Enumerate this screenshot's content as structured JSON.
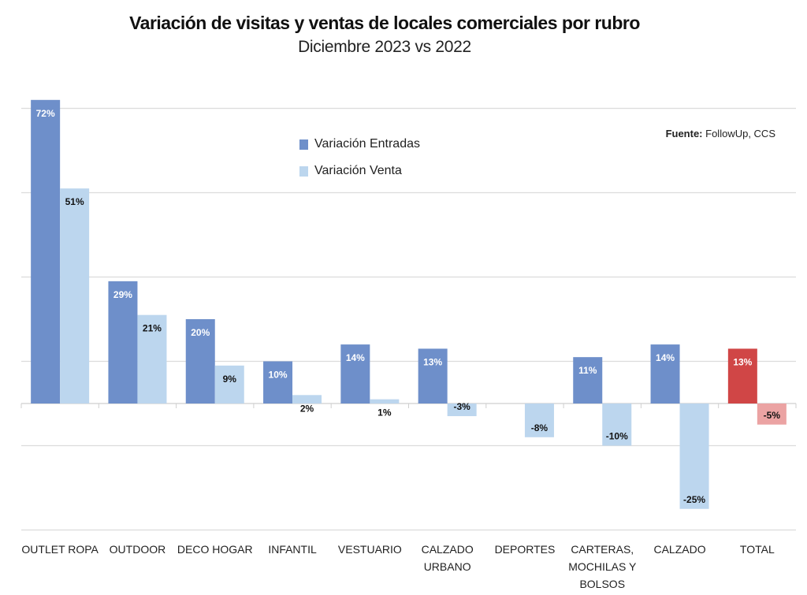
{
  "chart_data": {
    "type": "bar",
    "title": "Variación de visitas y ventas de locales comerciales por rubro",
    "subtitle": "Diciembre 2023 vs 2022",
    "source_label": "Fuente:",
    "source_value": "FollowUp, CCS",
    "categories": [
      [
        "OUTLET ROPA"
      ],
      [
        "OUTDOOR"
      ],
      [
        "DECO HOGAR"
      ],
      [
        "INFANTIL"
      ],
      [
        "VESTUARIO"
      ],
      [
        "CALZADO",
        "URBANO"
      ],
      [
        "DEPORTES"
      ],
      [
        "CARTERAS,",
        "MOCHILAS Y",
        "BOLSOS"
      ],
      [
        "CALZADO"
      ],
      [
        "TOTAL"
      ]
    ],
    "series": [
      {
        "name": "Variación Entradas",
        "color": "#6e8fca",
        "total_color": "#d04646",
        "label_color": "#ffffff",
        "values": [
          72,
          29,
          20,
          10,
          14,
          13,
          null,
          11,
          14,
          13
        ],
        "labels": [
          "72%",
          "29%",
          "20%",
          "10%",
          "14%",
          "13%",
          null,
          "11%",
          "14%",
          "13%"
        ]
      },
      {
        "name": "Variación Venta",
        "color": "#bcd6ee",
        "total_color": "#eba3a3",
        "label_color": "#111111",
        "values": [
          51,
          21,
          9,
          2,
          1,
          -3,
          -8,
          -10,
          -25,
          -5
        ],
        "labels": [
          "51%",
          "21%",
          "9%",
          "2%",
          "1%",
          "-3%",
          "-8%",
          "-10%",
          "-25%",
          "-5%"
        ]
      }
    ],
    "ylim": [
      -30,
      75
    ],
    "gridlines": [
      -30,
      -10,
      10,
      30,
      50,
      70
    ],
    "legend_position": "top-center",
    "xlabel": "",
    "ylabel": ""
  }
}
